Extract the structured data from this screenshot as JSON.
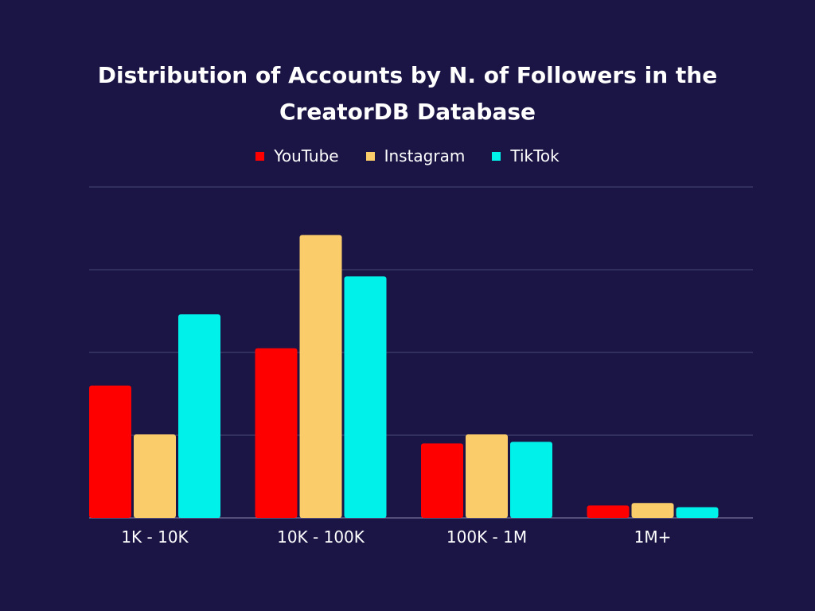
{
  "chart_data": {
    "type": "bar",
    "title": "Distribution of Accounts by N. of Followers in the CreatorDB Database",
    "categories": [
      "1K - 10K",
      "10K - 100K",
      "100K - 1M",
      "1M+"
    ],
    "series": [
      {
        "name": "YouTube",
        "color": "#ff0000",
        "values": [
          16,
          20.5,
          9,
          1.5
        ]
      },
      {
        "name": "Instagram",
        "color": "#fbcd6a",
        "values": [
          10.1,
          34.2,
          10.1,
          1.8
        ]
      },
      {
        "name": "TikTok",
        "color": "#00f0ea",
        "values": [
          24.6,
          29.2,
          9.2,
          1.3
        ]
      }
    ],
    "ylim": [
      0,
      40
    ],
    "grid": true,
    "legend": "top-center"
  }
}
